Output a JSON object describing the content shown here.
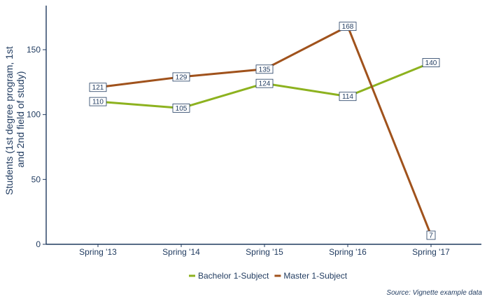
{
  "chart_data": {
    "type": "line",
    "categories": [
      "Spring '13",
      "Spring '14",
      "Spring '15",
      "Spring '16",
      "Spring '17"
    ],
    "series": [
      {
        "name": "Bachelor 1-Subject",
        "color": "#8db21f",
        "values": [
          110,
          105,
          124,
          114,
          140
        ]
      },
      {
        "name": "Master 1-Subject",
        "color": "#a0521c",
        "values": [
          121,
          129,
          135,
          168,
          7
        ]
      }
    ],
    "ylabel_lines": [
      "Students (1st degree program, 1st",
      "and 2nd field of study)"
    ],
    "xlabel": "",
    "ylim": [
      0,
      180
    ],
    "yticks": [
      0,
      50,
      100,
      150
    ],
    "grid": false,
    "legend_position": "bottom",
    "source": "Source: Vignette example data"
  }
}
